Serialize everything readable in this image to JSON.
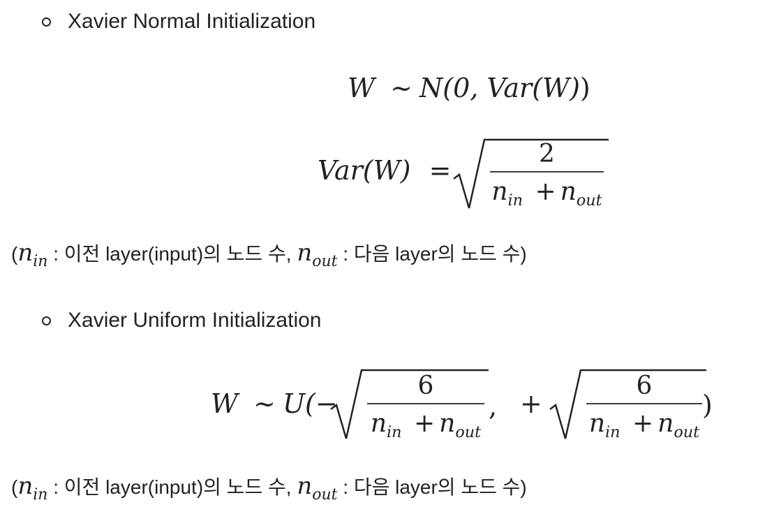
{
  "normal": {
    "title": "Xavier Normal Initialization",
    "eq1": {
      "lhs": "W",
      "sim": "~",
      "dist": "N(0, ",
      "var": "Var(W)",
      "close": ")"
    },
    "eq2": {
      "lhs": "Var(W)",
      "eq": "=",
      "num": "2",
      "den_a": "n",
      "den_a_sub": "in",
      "plus": "+",
      "den_b": "n",
      "den_b_sub": "out"
    }
  },
  "uniform": {
    "title": "Xavier Uniform Initialization",
    "eq": {
      "lhs": "W",
      "sim": "~",
      "dist": "U(−",
      "comma": ",",
      "plus": "+",
      "close": ")",
      "num": "6",
      "den_a": "n",
      "den_a_sub": "in",
      "den_plus": "+",
      "den_b": "n",
      "den_b_sub": "out"
    }
  },
  "note": {
    "open": "(",
    "var_a": "n",
    "var_a_sub": "in",
    "text_a": " : 이전 layer(input)의 노드 수, ",
    "var_b": "n",
    "var_b_sub": "out",
    "text_b": " : 다음 layer의 노드 수)"
  }
}
